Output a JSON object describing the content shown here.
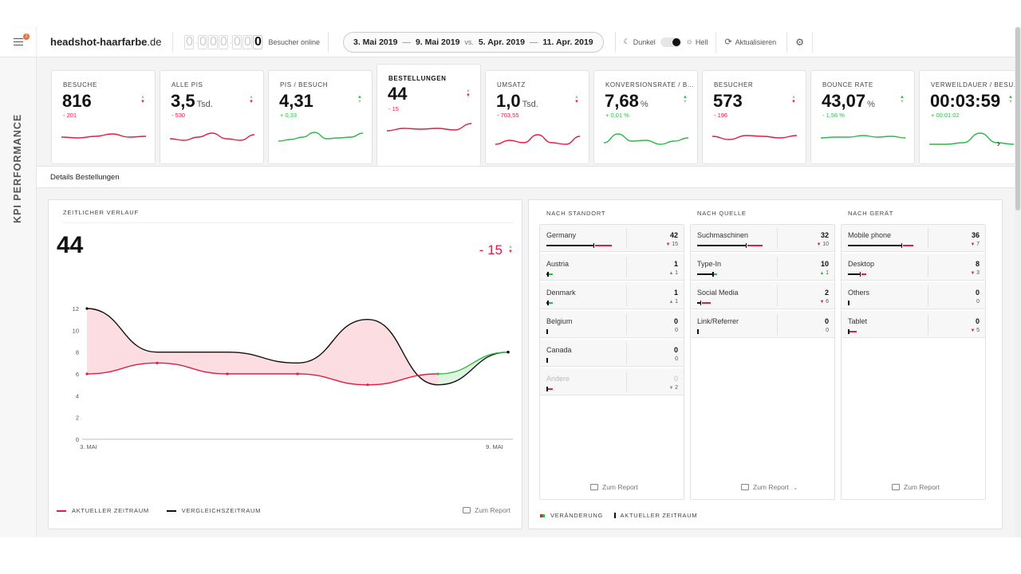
{
  "topbar": {
    "site_name": "headshot-haarfarbe",
    "site_tld": ".de",
    "online_digits": [
      "0",
      "0",
      "0",
      "0",
      "0",
      "0",
      "0"
    ],
    "online_label": "Besucher online",
    "date_from": "3. Mai 2019",
    "date_to": "9. Mai 2019",
    "vs_label": "vs.",
    "cmp_from": "5. Apr. 2019",
    "cmp_to": "11. Apr. 2019",
    "dark_label": "Dunkel",
    "light_label": "Hell",
    "refresh_label": "Aktualisieren",
    "notification_count": "1"
  },
  "rail": {
    "label": "KPI PERFORMANCE"
  },
  "kpis": [
    {
      "label": "BESUCHE",
      "value": "816",
      "unit": "",
      "delta": "- 201",
      "trend": "neg",
      "spark": [
        13,
        14,
        12,
        9,
        13,
        12
      ]
    },
    {
      "label": "ALLE PIS",
      "value": "3,5",
      "unit": "Tsd.",
      "delta": "- 530",
      "trend": "neg",
      "spark": [
        15,
        17,
        13,
        8,
        15,
        17,
        10
      ]
    },
    {
      "label": "PIS / BESUCH",
      "value": "4,31",
      "unit": "",
      "delta": "+ 0,33",
      "trend": "pos",
      "spark": [
        18,
        16,
        13,
        7,
        15,
        14,
        13,
        8
      ]
    },
    {
      "label": "BESTELLUNGEN",
      "value": "44",
      "unit": "",
      "delta": "- 15",
      "trend": "neg",
      "spark": [
        13,
        10,
        11,
        10,
        12,
        4
      ]
    },
    {
      "label": "UMSATZ",
      "value": "1,0",
      "unit": "Tsd.",
      "delta": "- 703,55",
      "trend": "neg",
      "spark": [
        22,
        17,
        20,
        10,
        20,
        22,
        12
      ]
    },
    {
      "label": "KONVERSIONSRATE / B...",
      "value": "7,68",
      "unit": "%",
      "delta": "+ 0,01 %",
      "trend": "pos",
      "spark": [
        20,
        9,
        18,
        17,
        22,
        18,
        14
      ]
    },
    {
      "label": "BESUCHER",
      "value": "573",
      "unit": "",
      "delta": "- 196",
      "trend": "neg",
      "spark": [
        12,
        16,
        11,
        12,
        14,
        11
      ]
    },
    {
      "label": "BOUNCE RATE",
      "value": "43,07",
      "unit": "%",
      "delta": "- 1,56 %",
      "trend": "pos",
      "spark": [
        14,
        13,
        13,
        11,
        13,
        12,
        14
      ]
    },
    {
      "label": "VERWEILDAUER / BESU...",
      "value": "00:03:59",
      "unit": "",
      "delta": "+ 00:01:02",
      "trend": "pos",
      "spark": [
        22,
        22,
        20,
        8,
        20,
        22
      ]
    }
  ],
  "details": {
    "tab_label": "Details Bestellungen",
    "chart_title": "ZEITLICHER VERLAUF",
    "big_value": "44",
    "big_delta": "- 15",
    "legend_current": "AKTUELLER ZEITRAUM",
    "legend_compare": "VERGLEICHSZEITRAUM",
    "report_label": "Zum Report"
  },
  "chart_data": {
    "type": "line",
    "x": [
      "3. MAI",
      "4. Mai",
      "5. Mai",
      "6. Mai",
      "7. Mai",
      "8. Mai",
      "9. MAI"
    ],
    "x_tick_labels": [
      "3. MAI",
      "9. MAI"
    ],
    "y_ticks": [
      0,
      2,
      4,
      6,
      8,
      10,
      12
    ],
    "ylim": [
      0,
      12
    ],
    "series": [
      {
        "name": "AKTUELLER ZEITRAUM",
        "color": "#e51b40",
        "values": [
          6,
          7,
          6,
          6,
          5,
          6,
          8
        ]
      },
      {
        "name": "VERGLEICHSZEITRAUM",
        "color": "#111111",
        "values": [
          12,
          8,
          8,
          7,
          11,
          5,
          8
        ]
      }
    ],
    "fill_worse": "#fbdde2",
    "fill_better": "#dff5e1"
  },
  "breakdown": {
    "columns": [
      {
        "title": "NACH STANDORT",
        "rows": [
          {
            "name": "Germany",
            "value": "42",
            "delta": "15",
            "dir": "down",
            "cur": 42,
            "prev": 57
          },
          {
            "name": "Austria",
            "value": "1",
            "delta": "1",
            "dir": "up",
            "cur": 1,
            "prev": 0
          },
          {
            "name": "Denmark",
            "value": "1",
            "delta": "1",
            "dir": "up",
            "cur": 1,
            "prev": 0
          },
          {
            "name": "Belgium",
            "value": "0",
            "delta": "0",
            "dir": "none",
            "cur": 0,
            "prev": 0
          },
          {
            "name": "Canada",
            "value": "0",
            "delta": "0",
            "dir": "none",
            "cur": 0,
            "prev": 0
          },
          {
            "name": "Andere",
            "value": "0",
            "delta": "2",
            "dir": "downgrey",
            "cur": 0,
            "prev": 2,
            "muted": true
          }
        ],
        "max": 57,
        "report": "Zum Report"
      },
      {
        "title": "NACH QUELLE",
        "rows": [
          {
            "name": "Suchmaschinen",
            "value": "32",
            "delta": "10",
            "dir": "down",
            "cur": 32,
            "prev": 42
          },
          {
            "name": "Type-In",
            "value": "10",
            "delta": "1",
            "dir": "up",
            "cur": 10,
            "prev": 9
          },
          {
            "name": "Social Media",
            "value": "2",
            "delta": "6",
            "dir": "down",
            "cur": 2,
            "prev": 8
          },
          {
            "name": "Link/Referrer",
            "value": "0",
            "delta": "0",
            "dir": "none",
            "cur": 0,
            "prev": 0
          }
        ],
        "max": 42,
        "report": "Zum Report"
      },
      {
        "title": "NACH GERÄT",
        "rows": [
          {
            "name": "Mobile phone",
            "value": "36",
            "delta": "7",
            "dir": "down",
            "cur": 36,
            "prev": 43
          },
          {
            "name": "Desktop",
            "value": "8",
            "delta": "3",
            "dir": "down",
            "cur": 8,
            "prev": 11
          },
          {
            "name": "Others",
            "value": "0",
            "delta": "0",
            "dir": "none",
            "cur": 0,
            "prev": 0
          },
          {
            "name": "Tablet",
            "value": "0",
            "delta": "5",
            "dir": "down",
            "cur": 0,
            "prev": 5
          }
        ],
        "max": 43,
        "report": "Zum Report"
      }
    ],
    "legend_change": "VERÄNDERUNG",
    "legend_current": "AKTUELLER ZEITRAUM"
  },
  "colors": {
    "negative": "#e51b40",
    "positive": "#2fb84a"
  }
}
